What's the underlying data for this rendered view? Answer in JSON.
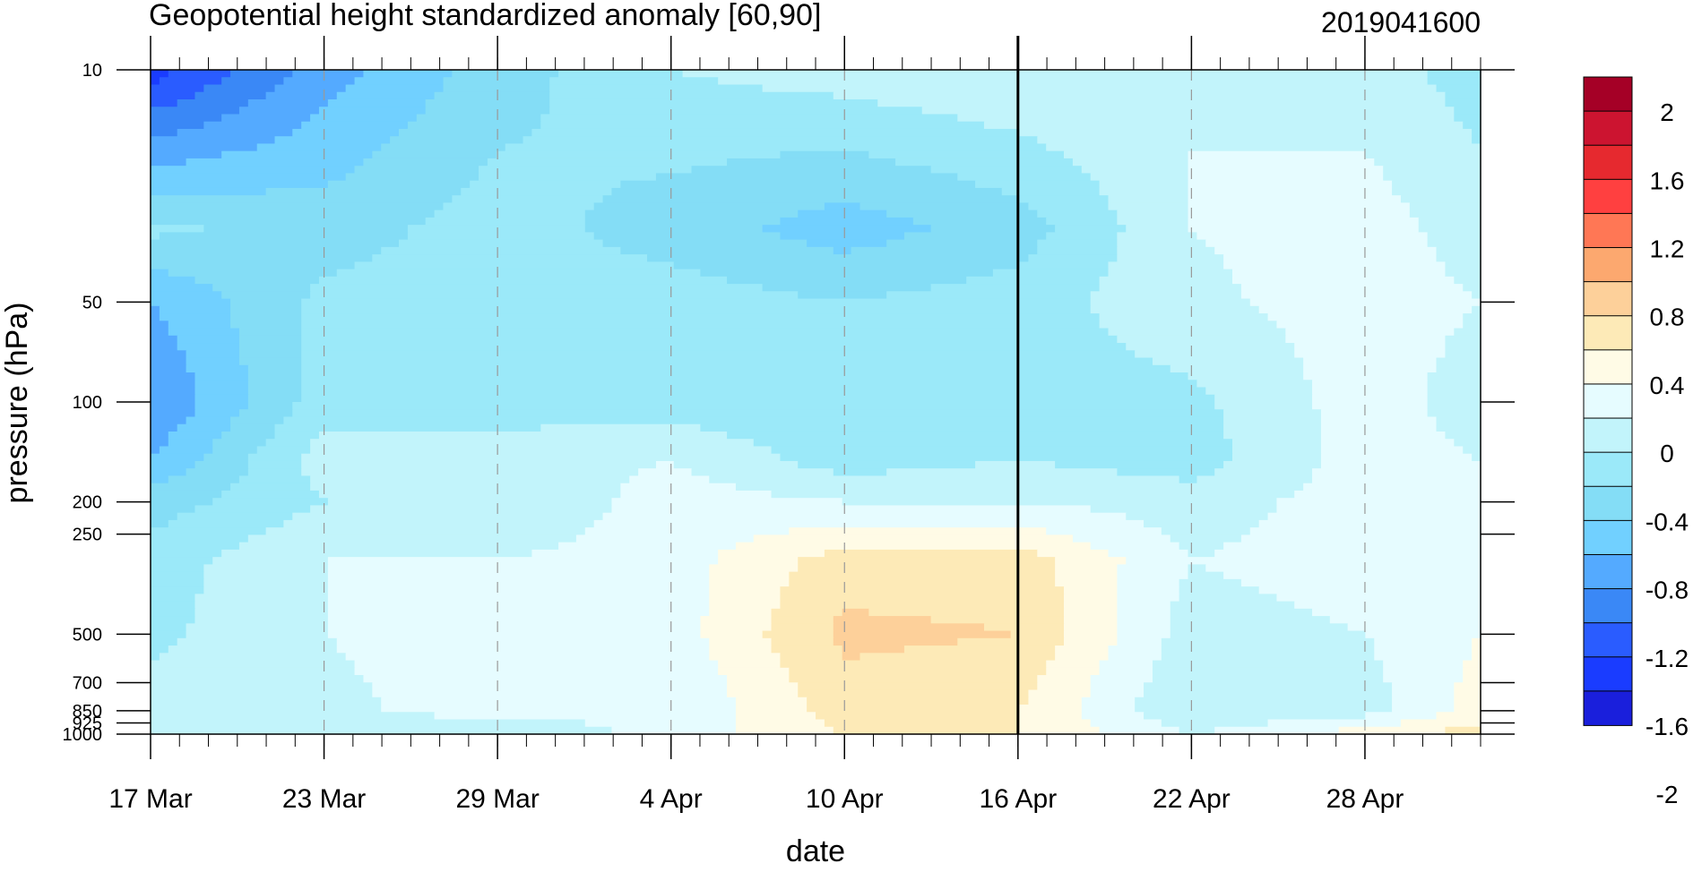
{
  "chart_data": {
    "type": "heatmap",
    "subtype": "filled-contour time-pressure cross-section",
    "title": "Geopotential height standardized anomaly [60,90]",
    "date_label": "2019041600",
    "xlabel": "date",
    "ylabel": "pressure (hPa)",
    "x_ticks": [
      "17 Mar",
      "23 Mar",
      "29 Mar",
      "4 Apr",
      "10 Apr",
      "16 Apr",
      "22 Apr",
      "28 Apr"
    ],
    "x_start": "2019-03-17",
    "x_end": "2019-05-02",
    "y_scale": "log",
    "y_reversed": true,
    "ylim": [
      1000,
      10
    ],
    "y_ticks": [
      "10",
      "50",
      "100",
      "200",
      "250",
      "500",
      "700",
      "850",
      "925",
      "1000"
    ],
    "vertical_marker": "16 Apr",
    "grid": "dashed vertical at major date ticks",
    "colorbar": {
      "position": "right",
      "labels": [
        "2",
        "1.6",
        "1.2",
        "0.8",
        "0.4",
        "0",
        "-0.4",
        "-0.8",
        "-1.2",
        "-1.6",
        "-2"
      ],
      "colors": [
        "#a50026",
        "#cc1430",
        "#e6292f",
        "#ff4040",
        "#ff7755",
        "#fca86f",
        "#fdd09a",
        "#fdeab7",
        "#fffbe6",
        "#e6fcff",
        "#c2f4fb",
        "#9be9f9",
        "#84ddf6",
        "#71d0ff",
        "#54aaff",
        "#3a88f6",
        "#2a5cff",
        "#1a3cff",
        "#1a1fdc"
      ]
    },
    "contour_levels": [
      -2.0,
      -1.8,
      -1.6,
      -1.4,
      -1.2,
      -1.0,
      -0.8,
      -0.6,
      -0.4,
      -0.2,
      0.0,
      0.2,
      0.4,
      0.6,
      0.8,
      1.0,
      1.2,
      1.4,
      1.6,
      1.8,
      2.0
    ],
    "grid_dates": [
      "2019-03-17",
      "2019-03-23",
      "2019-03-29",
      "2019-04-04",
      "2019-04-10",
      "2019-04-16",
      "2019-04-22",
      "2019-04-28",
      "2019-05-02"
    ],
    "grid_pressures": [
      10,
      30,
      50,
      100,
      150,
      200,
      300,
      500,
      850,
      1000
    ],
    "values": [
      [
        -1.7,
        -1.1,
        -0.7,
        -0.4,
        -0.3,
        -0.2,
        -0.2,
        -0.3,
        -0.5
      ],
      [
        -0.55,
        -0.7,
        -0.5,
        -0.7,
        -0.9,
        -0.7,
        -0.2,
        -0.1,
        -0.3
      ],
      [
        -1.0,
        -0.55,
        -0.5,
        -0.5,
        -0.6,
        -0.5,
        -0.25,
        -0.1,
        -0.2
      ],
      [
        -1.2,
        -0.5,
        -0.5,
        -0.5,
        -0.6,
        -0.5,
        -0.45,
        -0.1,
        -0.3
      ],
      [
        -1.0,
        -0.3,
        -0.3,
        -0.2,
        -0.5,
        -0.4,
        -0.5,
        -0.1,
        -0.2
      ],
      [
        -0.7,
        -0.4,
        -0.4,
        -0.1,
        -0.2,
        -0.2,
        -0.3,
        -0.1,
        -0.2
      ],
      [
        -0.5,
        -0.2,
        -0.2,
        -0.1,
        0.3,
        0.3,
        -0.2,
        -0.1,
        -0.1
      ],
      [
        -0.45,
        -0.2,
        -0.1,
        -0.1,
        0.45,
        0.4,
        -0.3,
        -0.2,
        0.0
      ],
      [
        -0.3,
        -0.25,
        -0.1,
        -0.2,
        0.3,
        0.2,
        -0.4,
        -0.3,
        0.1
      ],
      [
        -0.3,
        -0.3,
        -0.4,
        -0.1,
        0.2,
        0.2,
        -0.2,
        0.1,
        0.3
      ]
    ]
  }
}
